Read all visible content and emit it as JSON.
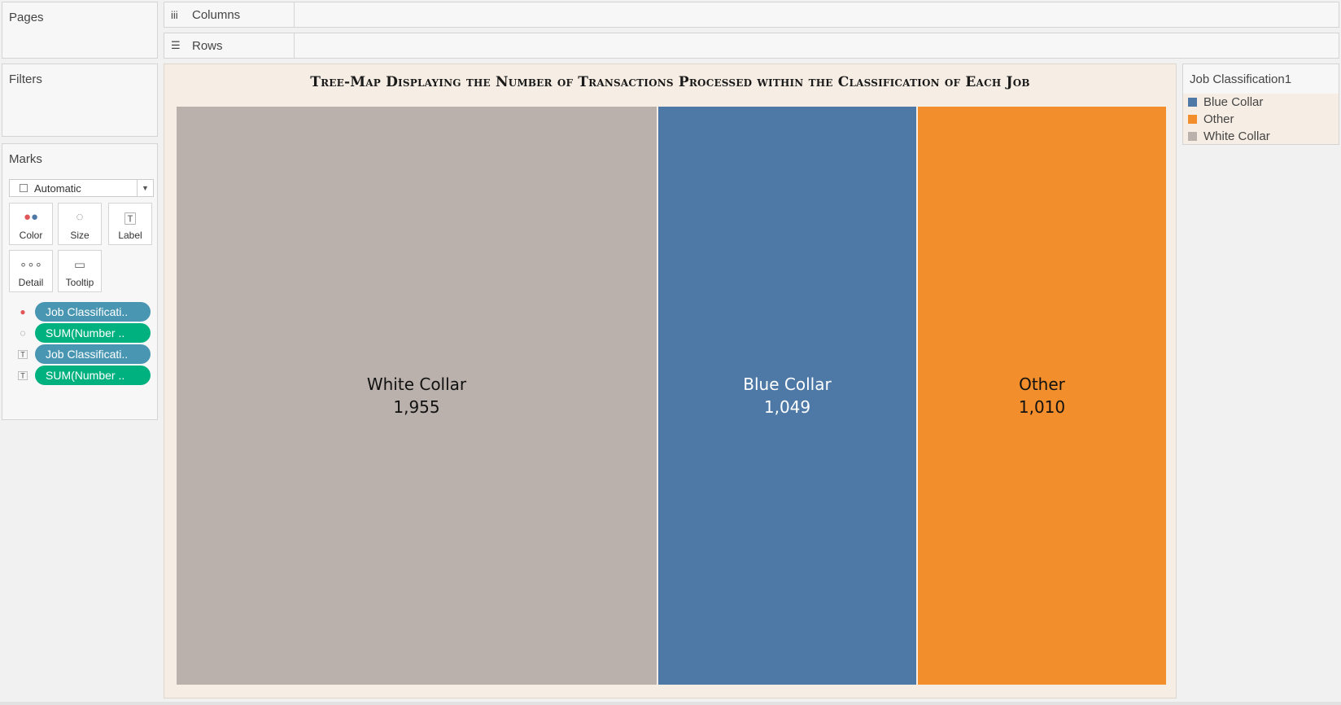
{
  "sidebar": {
    "pages_title": "Pages",
    "filters_title": "Filters",
    "marks_title": "Marks",
    "mark_type": "Automatic",
    "mark_buttons": {
      "color": "Color",
      "size": "Size",
      "label": "Label",
      "detail": "Detail",
      "tooltip": "Tooltip"
    },
    "pills": [
      {
        "text": "Job Classificati..",
        "kind": "dimension",
        "encoding": "color"
      },
      {
        "text": "SUM(Number ..",
        "kind": "measure",
        "encoding": "size"
      },
      {
        "text": "Job Classificati..",
        "kind": "dimension",
        "encoding": "label"
      },
      {
        "text": "SUM(Number ..",
        "kind": "measure",
        "encoding": "label"
      }
    ]
  },
  "shelves": {
    "columns_label": "Columns",
    "rows_label": "Rows"
  },
  "legend": {
    "title": "Job Classification1",
    "items": [
      {
        "label": "Blue Collar",
        "color": "#4e79a7"
      },
      {
        "label": "Other",
        "color": "#f28e2b"
      },
      {
        "label": "White Collar",
        "color": "#bab0ac"
      }
    ]
  },
  "chart_data": {
    "type": "treemap",
    "title": "Tree-Map Displaying the Number of Transactions Processed within the Classification of Each Job",
    "categories": [
      "White Collar",
      "Blue Collar",
      "Other"
    ],
    "values": [
      1955,
      1049,
      1010
    ],
    "value_labels": [
      "1,955",
      "1,049",
      "1,010"
    ],
    "colors": [
      "#bab0ac",
      "#4e79a7",
      "#f28e2b"
    ],
    "label_colors": [
      "#111111",
      "#ffffff",
      "#111111"
    ]
  }
}
